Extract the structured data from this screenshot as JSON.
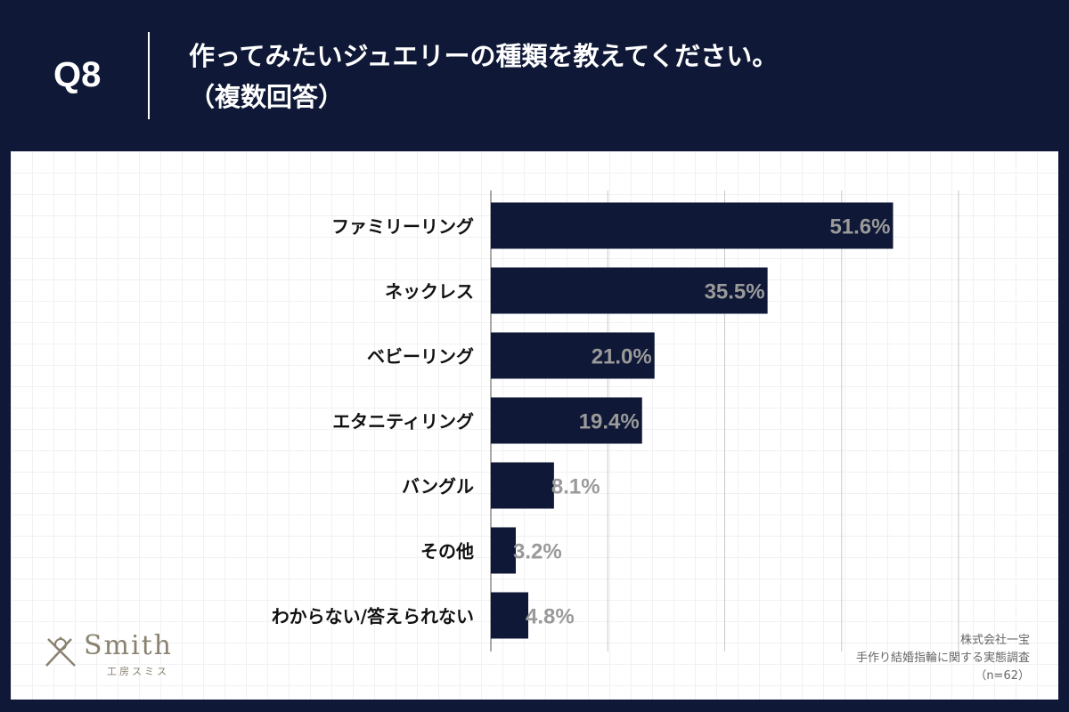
{
  "header": {
    "question_no": "Q8",
    "title_line1": "作ってみたいジュエリーの種類を教えてください。",
    "title_line2": "（複数回答）"
  },
  "chart_data": {
    "type": "bar",
    "orientation": "horizontal",
    "title": "作ってみたいジュエリーの種類を教えてください。（複数回答）",
    "categories": [
      "ファミリーリング",
      "ネックレス",
      "ベビーリング",
      "エタニティリング",
      "バングル",
      "その他",
      "わからない/答えられない"
    ],
    "values": [
      51.6,
      35.5,
      21.0,
      19.4,
      8.1,
      3.2,
      4.8
    ],
    "value_labels": [
      "51.6%",
      "35.5%",
      "21.0%",
      "19.4%",
      "8.1%",
      "3.2%",
      "4.8%"
    ],
    "xlim": [
      0,
      60
    ],
    "grid_step": 15,
    "xlabel": "",
    "ylabel": "",
    "bar_color": "#0f1836",
    "label_color": "#9a9a9a"
  },
  "logo": {
    "word": "Smith",
    "sub": "工房スミス"
  },
  "source": {
    "company": "株式会社一宝",
    "survey": "手作り結婚指輪に関する実態調査",
    "sample": "（n=62）"
  },
  "colors": {
    "background": "#0f1836",
    "panel": "#ffffff",
    "text": "#111111"
  }
}
